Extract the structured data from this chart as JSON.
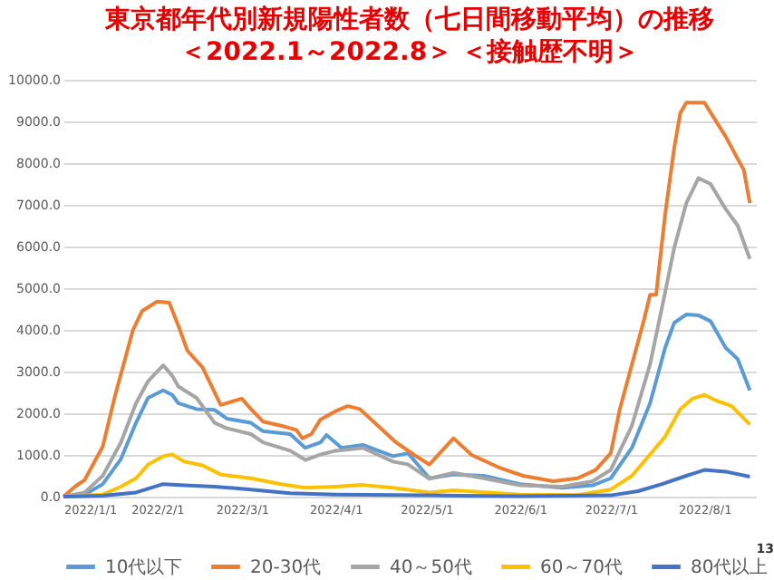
{
  "chart_data": {
    "type": "line",
    "title": [
      "東京都年代別新規陽性者数（七日間移動平均）の推移",
      "＜2022.1～2022.8＞ ＜接触歴不明＞"
    ],
    "xlim": [
      "2022-01-01",
      "2022-08-18"
    ],
    "xticks": [
      {
        "value": "2022-01-01",
        "label": "2022/1/1"
      },
      {
        "value": "2022-02-01",
        "label": "2022/2/1"
      },
      {
        "value": "2022-03-01",
        "label": "2022/3/1"
      },
      {
        "value": "2022-04-01",
        "label": "2022/4/1"
      },
      {
        "value": "2022-05-01",
        "label": "2022/5/1"
      },
      {
        "value": "2022-06-01",
        "label": "2022/6/1"
      },
      {
        "value": "2022-07-01",
        "label": "2022/7/1"
      },
      {
        "value": "2022-08-01",
        "label": "2022/8/1"
      }
    ],
    "ylim": [
      0,
      10000
    ],
    "yticks": [
      {
        "value": 0,
        "label": "0.0"
      },
      {
        "value": 1000,
        "label": "1000.0"
      },
      {
        "value": 2000,
        "label": "2000.0"
      },
      {
        "value": 3000,
        "label": "3000.0"
      },
      {
        "value": 4000,
        "label": "4000.0"
      },
      {
        "value": 5000,
        "label": "5000.0"
      },
      {
        "value": 6000,
        "label": "6000.0"
      },
      {
        "value": 7000,
        "label": "7000.0"
      },
      {
        "value": 8000,
        "label": "8000.0"
      },
      {
        "value": 9000,
        "label": "9000.0"
      },
      {
        "value": 10000,
        "label": "10000.0"
      }
    ],
    "grid": "y",
    "legend": "bottom",
    "marker": "none",
    "line_style": "solid",
    "annotations": [
      "13"
    ],
    "series": [
      {
        "name": "10代以下",
        "color": "#5b9bd5",
        "x": [
          "2022-01-01",
          "2022-01-08",
          "2022-01-14",
          "2022-01-20",
          "2022-01-25",
          "2022-01-29",
          "2022-02-03",
          "2022-02-06",
          "2022-02-08",
          "2022-02-14",
          "2022-02-20",
          "2022-02-24",
          "2022-03-04",
          "2022-03-08",
          "2022-03-17",
          "2022-03-22",
          "2022-03-27",
          "2022-03-29",
          "2022-04-03",
          "2022-04-10",
          "2022-04-20",
          "2022-04-25",
          "2022-05-02",
          "2022-05-10",
          "2022-05-20",
          "2022-06-01",
          "2022-06-15",
          "2022-06-25",
          "2022-07-01",
          "2022-07-08",
          "2022-07-14",
          "2022-07-19",
          "2022-07-22",
          "2022-07-26",
          "2022-07-30",
          "2022-08-03",
          "2022-08-08",
          "2022-08-12",
          "2022-08-16"
        ],
        "values": [
          0,
          50,
          300,
          900,
          1770,
          2370,
          2550,
          2440,
          2240,
          2100,
          2080,
          1870,
          1770,
          1570,
          1500,
          1170,
          1300,
          1480,
          1170,
          1240,
          970,
          1040,
          440,
          530,
          500,
          300,
          210,
          270,
          440,
          1170,
          2240,
          3570,
          4170,
          4370,
          4350,
          4210,
          3570,
          3300,
          2550
        ]
      },
      {
        "name": "20-30代",
        "color": "#ed7d31",
        "x": [
          "2022-01-01",
          "2022-01-05",
          "2022-01-08",
          "2022-01-14",
          "2022-01-18",
          "2022-01-24",
          "2022-01-27",
          "2022-02-01",
          "2022-02-05",
          "2022-02-08",
          "2022-02-11",
          "2022-02-16",
          "2022-02-22",
          "2022-03-01",
          "2022-03-04",
          "2022-03-08",
          "2022-03-14",
          "2022-03-19",
          "2022-03-21",
          "2022-03-24",
          "2022-03-27",
          "2022-04-01",
          "2022-04-05",
          "2022-04-09",
          "2022-04-15",
          "2022-04-21",
          "2022-04-27",
          "2022-05-02",
          "2022-05-10",
          "2022-05-16",
          "2022-05-25",
          "2022-06-02",
          "2022-06-12",
          "2022-06-20",
          "2022-06-26",
          "2022-07-01",
          "2022-07-04",
          "2022-07-08",
          "2022-07-12",
          "2022-07-14",
          "2022-07-16",
          "2022-07-19",
          "2022-07-22",
          "2022-07-24",
          "2022-07-26",
          "2022-08-01",
          "2022-08-04",
          "2022-08-08",
          "2022-08-12",
          "2022-08-14",
          "2022-08-16"
        ],
        "values": [
          0,
          250,
          400,
          1200,
          2400,
          4000,
          4450,
          4680,
          4650,
          4100,
          3500,
          3100,
          2200,
          2350,
          2100,
          1800,
          1700,
          1600,
          1400,
          1500,
          1850,
          2050,
          2170,
          2100,
          1700,
          1300,
          1000,
          770,
          1400,
          1000,
          700,
          500,
          370,
          440,
          640,
          1040,
          2100,
          3170,
          4240,
          4840,
          4840,
          6770,
          8370,
          9200,
          9450,
          9450,
          9100,
          8640,
          8100,
          7840,
          7040
        ]
      },
      {
        "name": "40～50代",
        "color": "#a5a5a5",
        "x": [
          "2022-01-01",
          "2022-01-08",
          "2022-01-14",
          "2022-01-20",
          "2022-01-25",
          "2022-01-29",
          "2022-02-03",
          "2022-02-06",
          "2022-02-08",
          "2022-02-14",
          "2022-02-20",
          "2022-02-24",
          "2022-03-04",
          "2022-03-08",
          "2022-03-17",
          "2022-03-22",
          "2022-03-27",
          "2022-04-01",
          "2022-04-10",
          "2022-04-20",
          "2022-04-25",
          "2022-05-02",
          "2022-05-10",
          "2022-05-20",
          "2022-06-01",
          "2022-06-15",
          "2022-06-25",
          "2022-07-01",
          "2022-07-08",
          "2022-07-14",
          "2022-07-19",
          "2022-07-22",
          "2022-07-26",
          "2022-07-30",
          "2022-08-03",
          "2022-08-08",
          "2022-08-12",
          "2022-08-16"
        ],
        "values": [
          0,
          100,
          500,
          1300,
          2240,
          2770,
          3150,
          2900,
          2640,
          2370,
          1770,
          1640,
          1500,
          1300,
          1100,
          880,
          1010,
          1100,
          1170,
          840,
          770,
          430,
          570,
          440,
          270,
          240,
          370,
          640,
          1700,
          3170,
          4900,
          5970,
          7040,
          7640,
          7500,
          6900,
          6500,
          5700
        ]
      },
      {
        "name": "60～70代",
        "color": "#ffc000",
        "x": [
          "2022-01-01",
          "2022-01-14",
          "2022-01-20",
          "2022-01-25",
          "2022-01-29",
          "2022-02-03",
          "2022-02-06",
          "2022-02-10",
          "2022-02-16",
          "2022-02-22",
          "2022-03-04",
          "2022-03-14",
          "2022-03-22",
          "2022-04-01",
          "2022-04-10",
          "2022-04-20",
          "2022-05-02",
          "2022-05-10",
          "2022-06-01",
          "2022-06-20",
          "2022-07-01",
          "2022-07-08",
          "2022-07-14",
          "2022-07-19",
          "2022-07-24",
          "2022-07-28",
          "2022-08-01",
          "2022-08-05",
          "2022-08-10",
          "2022-08-16"
        ],
        "values": [
          0,
          50,
          240,
          440,
          770,
          970,
          1010,
          840,
          750,
          530,
          440,
          300,
          210,
          240,
          280,
          210,
          100,
          150,
          50,
          40,
          170,
          500,
          1010,
          1440,
          2100,
          2350,
          2440,
          2300,
          2170,
          1730
        ]
      },
      {
        "name": "80代以上",
        "color": "#4472c4",
        "x": [
          "2022-01-01",
          "2022-01-14",
          "2022-01-25",
          "2022-02-03",
          "2022-02-10",
          "2022-02-20",
          "2022-03-04",
          "2022-03-17",
          "2022-04-01",
          "2022-05-01",
          "2022-06-01",
          "2022-07-01",
          "2022-07-10",
          "2022-07-18",
          "2022-07-26",
          "2022-08-01",
          "2022-08-08",
          "2022-08-16"
        ],
        "values": [
          0,
          20,
          100,
          300,
          270,
          240,
          170,
          80,
          50,
          30,
          10,
          30,
          130,
          300,
          500,
          640,
          600,
          480
        ]
      }
    ]
  }
}
